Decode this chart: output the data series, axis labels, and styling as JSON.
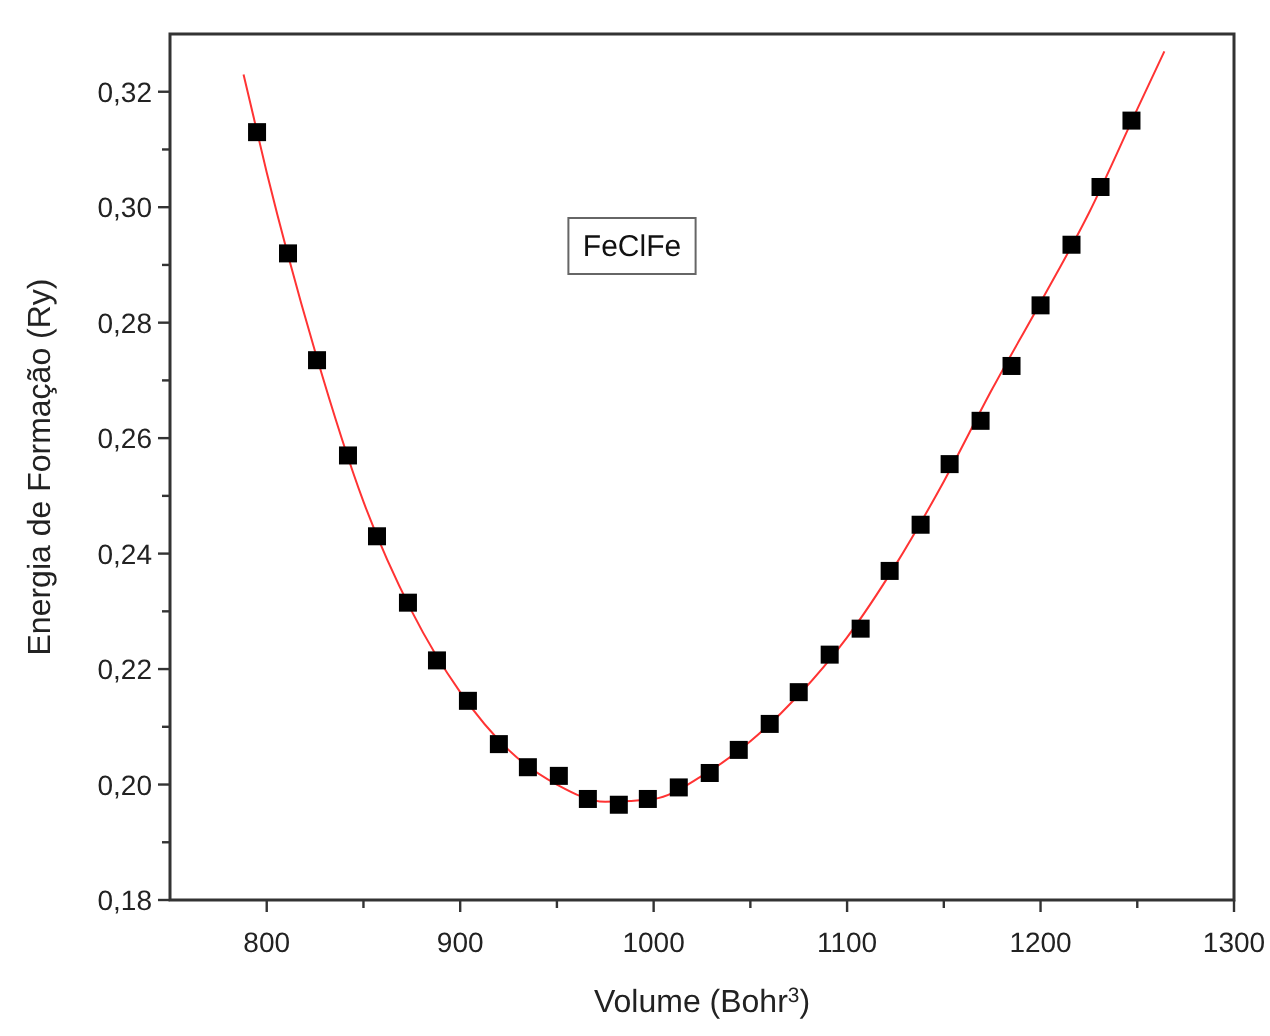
{
  "chart_data": {
    "type": "scatter",
    "xlabel": "Volume (Bohr$^{3}$)",
    "ylabel": "Energia de Formação (Ry)",
    "annotations": [
      "FeClFe"
    ],
    "xlim": [
      750,
      1300
    ],
    "ylim": [
      0.18,
      0.33
    ],
    "xticks": [
      800,
      {
        "value": 850,
        "label": null
      },
      900,
      {
        "value": 950,
        "label": null
      },
      1000,
      {
        "value": 1050,
        "label": null
      },
      1100,
      {
        "value": 1150,
        "label": null
      },
      1200,
      {
        "value": 1250,
        "label": null
      },
      1300
    ],
    "yticks": [
      {
        "value": 0.18,
        "label": "0,18"
      },
      {
        "value": 0.19,
        "label": null
      },
      {
        "value": 0.2,
        "label": "0,20"
      },
      {
        "value": 0.21,
        "label": null
      },
      {
        "value": 0.22,
        "label": "0,22"
      },
      {
        "value": 0.23,
        "label": null
      },
      {
        "value": 0.24,
        "label": "0,24"
      },
      {
        "value": 0.25,
        "label": null
      },
      {
        "value": 0.26,
        "label": "0,26"
      },
      {
        "value": 0.27,
        "label": null
      },
      {
        "value": 0.28,
        "label": "0,28"
      },
      {
        "value": 0.29,
        "label": null
      },
      {
        "value": 0.3,
        "label": "0,30"
      },
      {
        "value": 0.31,
        "label": null
      },
      {
        "value": 0.32,
        "label": "0,32"
      }
    ],
    "grid": false,
    "series": [
      {
        "type": "line",
        "color": "#ff3333",
        "line_style": "solid",
        "x": [
          788,
          800,
          825,
          850,
          875,
          900,
          925,
          950,
          975,
          1000,
          1025,
          1050,
          1075,
          1100,
          1125,
          1150,
          1175,
          1200,
          1225,
          1250,
          1264
        ],
        "values": [
          0.323,
          0.306,
          0.275,
          0.249,
          0.23,
          0.216,
          0.206,
          0.2,
          0.197,
          0.1975,
          0.2015,
          0.2075,
          0.2155,
          0.2255,
          0.238,
          0.2525,
          0.2685,
          0.2835,
          0.299,
          0.317,
          0.327
        ]
      },
      {
        "color": "#000000",
        "marker": "square",
        "x": [
          795,
          811,
          826,
          842,
          857,
          873,
          888,
          904,
          920,
          935,
          951,
          966,
          982,
          997,
          1013,
          1029,
          1044,
          1060,
          1075,
          1091,
          1107,
          1122,
          1138,
          1153,
          1169,
          1185,
          1200,
          1216,
          1231,
          1247
        ],
        "values": [
          0.313,
          0.292,
          0.2735,
          0.257,
          0.243,
          0.2315,
          0.2215,
          0.2145,
          0.207,
          0.203,
          0.2015,
          0.1975,
          0.1965,
          0.1975,
          0.1995,
          0.202,
          0.206,
          0.2105,
          0.216,
          0.2225,
          0.227,
          0.237,
          0.245,
          0.2555,
          0.263,
          0.2725,
          0.283,
          0.2935,
          0.3035,
          0.315
        ]
      }
    ]
  }
}
